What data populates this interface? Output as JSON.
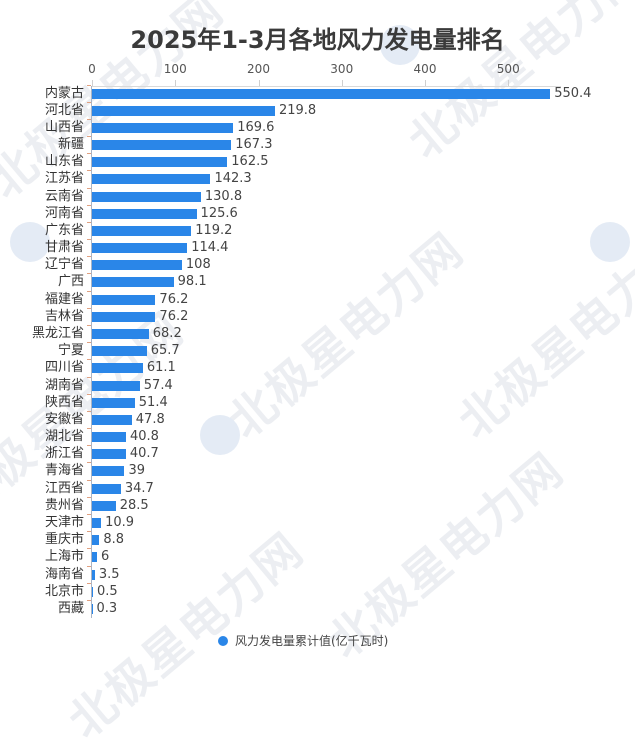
{
  "chart_data": {
    "type": "bar",
    "orientation": "horizontal",
    "title": "2025年1-3月各地风力发电量排名",
    "xlabel": "",
    "ylabel": "",
    "xlim": [
      0,
      550
    ],
    "x_ticks": [
      0,
      100,
      200,
      300,
      400,
      500
    ],
    "grid": false,
    "legend_position": "bottom",
    "categories": [
      "内蒙古",
      "河北省",
      "山西省",
      "新疆",
      "山东省",
      "江苏省",
      "云南省",
      "河南省",
      "广东省",
      "甘肃省",
      "辽宁省",
      "广西",
      "福建省",
      "吉林省",
      "黑龙江省",
      "宁夏",
      "四川省",
      "湖南省",
      "陕西省",
      "安徽省",
      "湖北省",
      "浙江省",
      "青海省",
      "江西省",
      "贵州省",
      "天津市",
      "重庆市",
      "上海市",
      "海南省",
      "北京市",
      "西藏"
    ],
    "series": [
      {
        "name": "风力发电量累计值(亿千瓦时)",
        "color": "#2a86e8",
        "values": [
          550.4,
          219.8,
          169.6,
          167.3,
          162.5,
          142.3,
          130.8,
          125.6,
          119.2,
          114.4,
          108,
          98.1,
          76.2,
          76.2,
          68.2,
          65.7,
          61.1,
          57.4,
          51.4,
          47.8,
          40.8,
          40.7,
          39,
          34.7,
          28.5,
          10.9,
          8.8,
          6,
          3.5,
          0.5,
          0.3
        ]
      }
    ]
  },
  "title": "2025年1-3月各地风力发电量排名",
  "ticks": [
    "0",
    "100",
    "200",
    "300",
    "400",
    "500"
  ],
  "legend": {
    "label": "风力发电量累计值(亿千瓦时)"
  },
  "watermark": "北极星电力网",
  "rows": [
    {
      "cat": "内蒙古",
      "val": "550.4"
    },
    {
      "cat": "河北省",
      "val": "219.8"
    },
    {
      "cat": "山西省",
      "val": "169.6"
    },
    {
      "cat": "新疆",
      "val": "167.3"
    },
    {
      "cat": "山东省",
      "val": "162.5"
    },
    {
      "cat": "江苏省",
      "val": "142.3"
    },
    {
      "cat": "云南省",
      "val": "130.8"
    },
    {
      "cat": "河南省",
      "val": "125.6"
    },
    {
      "cat": "广东省",
      "val": "119.2"
    },
    {
      "cat": "甘肃省",
      "val": "114.4"
    },
    {
      "cat": "辽宁省",
      "val": "108"
    },
    {
      "cat": "广西",
      "val": "98.1"
    },
    {
      "cat": "福建省",
      "val": "76.2"
    },
    {
      "cat": "吉林省",
      "val": "76.2"
    },
    {
      "cat": "黑龙江省",
      "val": "68.2"
    },
    {
      "cat": "宁夏",
      "val": "65.7"
    },
    {
      "cat": "四川省",
      "val": "61.1"
    },
    {
      "cat": "湖南省",
      "val": "57.4"
    },
    {
      "cat": "陕西省",
      "val": "51.4"
    },
    {
      "cat": "安徽省",
      "val": "47.8"
    },
    {
      "cat": "湖北省",
      "val": "40.8"
    },
    {
      "cat": "浙江省",
      "val": "40.7"
    },
    {
      "cat": "青海省",
      "val": "39"
    },
    {
      "cat": "江西省",
      "val": "34.7"
    },
    {
      "cat": "贵州省",
      "val": "28.5"
    },
    {
      "cat": "天津市",
      "val": "10.9"
    },
    {
      "cat": "重庆市",
      "val": "8.8"
    },
    {
      "cat": "上海市",
      "val": "6"
    },
    {
      "cat": "海南省",
      "val": "3.5"
    },
    {
      "cat": "北京市",
      "val": "0.5"
    },
    {
      "cat": "西藏",
      "val": "0.3"
    }
  ]
}
